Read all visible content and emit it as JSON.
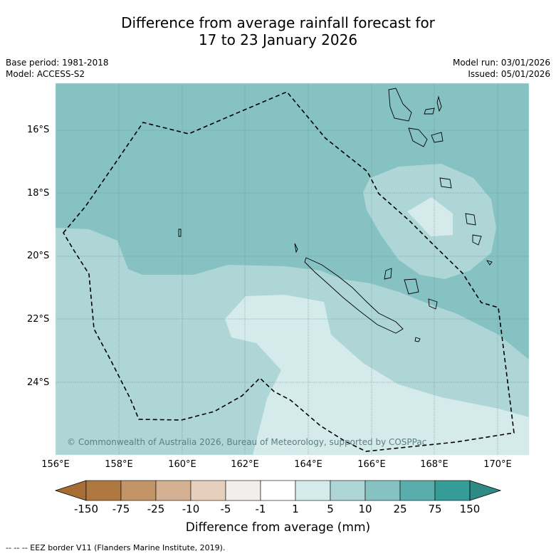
{
  "title_line1": "Difference from average rainfall forecast for",
  "title_line2": "17 to 23 January 2026",
  "base_period": "Base period: 1981-2018",
  "model": "Model: ACCESS-S2",
  "model_run": "Model run: 03/01/2026",
  "issued": "Issued: 05/01/2026",
  "map": {
    "lat_labels": [
      "16°S",
      "18°S",
      "20°S",
      "22°S",
      "24°S"
    ],
    "lon_labels": [
      "156°E",
      "158°E",
      "160°E",
      "162°E",
      "164°E",
      "166°E",
      "168°E",
      "170°E"
    ],
    "copyright": "© Commonwealth of Australia 2026, Bureau of Meteorology, supported by COSPPac",
    "colors": {
      "band_10_25": "#86c2c2",
      "band_5_10": "#aed6d6",
      "band_1_5": "#d5eaea",
      "coast": "#000000",
      "eez": "#000000"
    }
  },
  "colorbar": {
    "title": "Difference from average (mm)",
    "ticks": [
      "-150",
      "-75",
      "-25",
      "-10",
      "-5",
      "-1",
      "1",
      "5",
      "10",
      "25",
      "75",
      "150"
    ],
    "colors": [
      "#a86c35",
      "#b07841",
      "#c29466",
      "#d4b192",
      "#e6d0bd",
      "#f2eeeb",
      "#ffffff",
      "#d5eaea",
      "#aed6d6",
      "#86c2c2",
      "#5aadad",
      "#369c98",
      "#2e8a85"
    ]
  },
  "footer": "--  --  -- EEZ border V11 (Flanders Marine Institute, 2019)."
}
